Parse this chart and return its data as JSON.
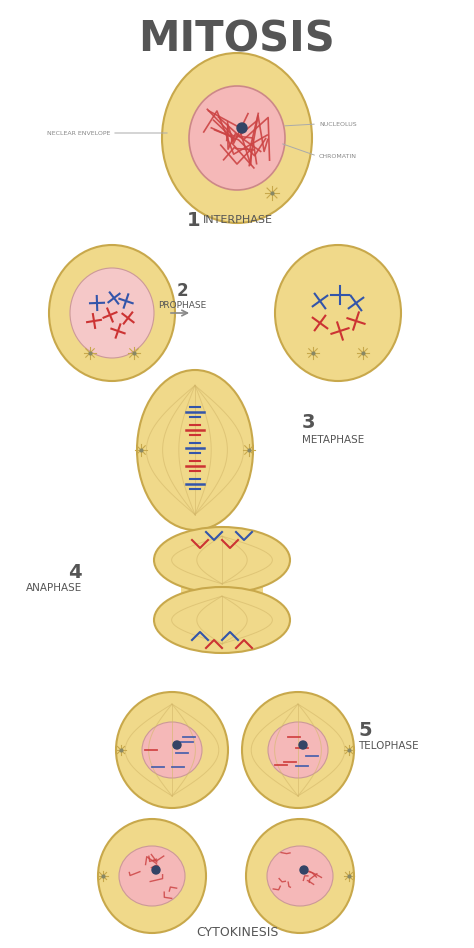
{
  "title": "MITOSIS",
  "title_color": "#555555",
  "bg_color": "#ffffff",
  "cell_outer_color": "#f0d98a",
  "cell_outer_edge": "#c8a84b",
  "nucleus_color": "#f5b8b8",
  "chromatin_color": "#cc4444",
  "nucleolus_color": "#334466",
  "spindle_color": "#d4b86a",
  "chr_red": "#cc3333",
  "chr_blue": "#3355aa",
  "label_nuclear_envelope": "NECLEAR ENVELOPE",
  "label_nucleolus": "NUCLEOLUS",
  "label_chromatin": "CHROMATIN",
  "label_color": "#888888",
  "stage_num_color": "#555555",
  "stage_text_color": "#555555"
}
